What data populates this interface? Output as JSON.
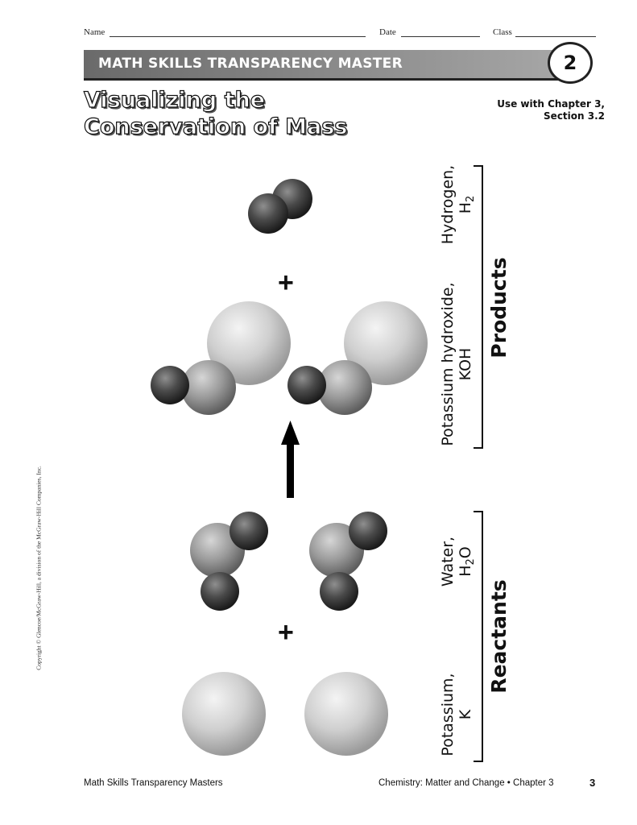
{
  "header": {
    "name_label": "Name",
    "date_label": "Date",
    "class_label": "Class"
  },
  "banner": {
    "title": "MATH SKILLS TRANSPARENCY MASTER",
    "number": "2"
  },
  "page_title": {
    "line1": "Visualizing the",
    "line2": "Conservation of Mass"
  },
  "use_with": {
    "line1": "Use with Chapter 3,",
    "line2": "Section 3.2"
  },
  "diagram": {
    "plus_sign": "+",
    "products_label": "Products",
    "reactants_label": "Reactants",
    "hydrogen": {
      "name": "Hydrogen,",
      "formula_main": "H",
      "formula_sub": "2"
    },
    "koh": {
      "name": "Potassium hydroxide,",
      "formula": "KOH"
    },
    "water": {
      "name": "Water,",
      "formula_pre": "H",
      "formula_sub": "2",
      "formula_post": "O"
    },
    "potassium": {
      "name": "Potassium,",
      "formula": "K"
    }
  },
  "copyright": "Copyright © Glencoe/McGraw-Hill, a division of the McGraw-Hill Companies, Inc.",
  "footer": {
    "left": "Math Skills Transparency Masters",
    "right": "Chemistry: Matter and Change • Chapter 3",
    "page_number": "3"
  }
}
